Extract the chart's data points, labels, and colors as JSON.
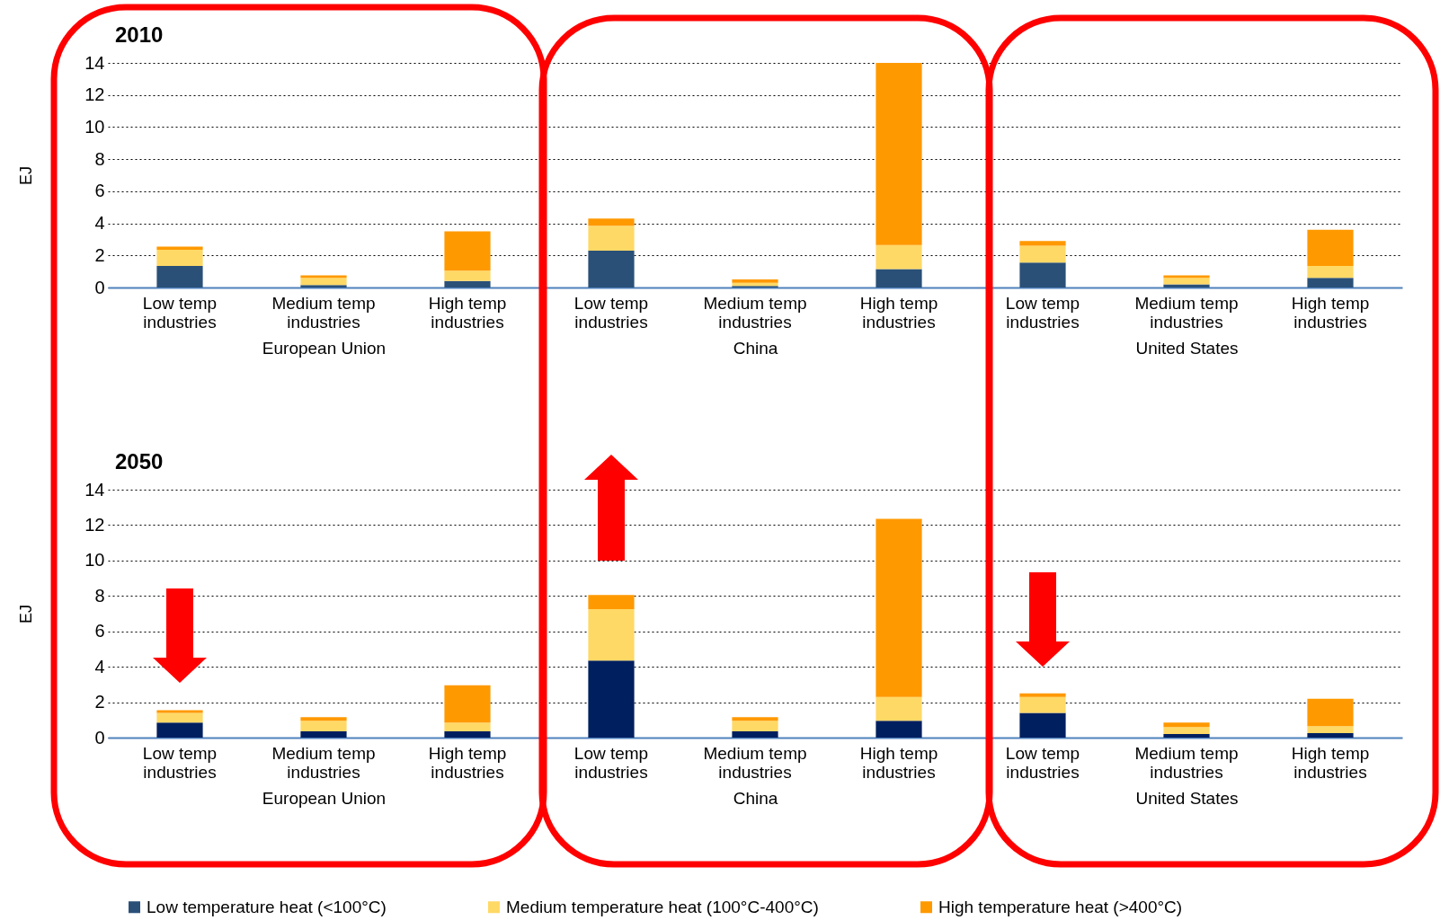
{
  "chart_data": [
    {
      "type": "bar",
      "stacked": true,
      "title": "2010",
      "ylabel": "EJ",
      "xlabel": "European Union",
      "categories": [
        "Low temp industries",
        "Medium temp industries",
        "High temp industries"
      ],
      "ylim": [
        0,
        14
      ],
      "yticks": [
        0,
        2,
        4,
        6,
        8,
        10,
        12,
        14
      ],
      "grid": "y",
      "legend": "bottom",
      "series": [
        {
          "name": "Low temperature heat (<100°C)",
          "color": "#2a5078",
          "values": [
            1.35,
            0.15,
            0.4
          ]
        },
        {
          "name": "Medium temperature heat (100°C-400°C)",
          "color": "#ffd966",
          "values": [
            1.0,
            0.45,
            0.65
          ]
        },
        {
          "name": "High temperature heat (>400°C)",
          "color": "#ff9900",
          "values": [
            0.2,
            0.15,
            2.45
          ]
        }
      ]
    },
    {
      "type": "bar",
      "stacked": true,
      "xlabel": "China",
      "categories": [
        "Low temp industries",
        "Medium temp industries",
        "High temp industries"
      ],
      "ylim": [
        0,
        14
      ],
      "yticks": [
        0,
        2,
        4,
        6,
        8,
        10,
        12,
        14
      ],
      "grid": "y",
      "tick_labels": "x",
      "series": [
        {
          "color": "#2a5078",
          "values": [
            2.3,
            0.1,
            1.15
          ]
        },
        {
          "color": "#ffd966",
          "values": [
            1.55,
            0.2,
            1.5
          ]
        },
        {
          "color": "#ff9900",
          "values": [
            0.45,
            0.2,
            11.35
          ]
        }
      ]
    },
    {
      "type": "bar",
      "stacked": true,
      "xlabel": "United States",
      "categories": [
        "Low temp industries",
        "Medium temp industries",
        "High temp industries"
      ],
      "ylim": [
        0,
        14
      ],
      "yticks": [
        0,
        2,
        4,
        6,
        8,
        10,
        12,
        14
      ],
      "grid": "y",
      "tick_labels": "x",
      "series": [
        {
          "color": "#2a5078",
          "values": [
            1.55,
            0.2,
            0.6
          ]
        },
        {
          "color": "#ffd966",
          "values": [
            1.05,
            0.4,
            0.75
          ]
        },
        {
          "color": "#ff9900",
          "values": [
            0.3,
            0.15,
            2.25
          ]
        }
      ]
    },
    {
      "type": "bar",
      "stacked": true,
      "title": "2050",
      "ylabel": "EJ",
      "xlabel": "European Union",
      "categories": [
        "Low temp industries",
        "Medium temp industries",
        "High temp industries"
      ],
      "ylim": [
        0,
        14
      ],
      "yticks": [
        0,
        2,
        4,
        6,
        8,
        10,
        12,
        14
      ],
      "grid": "y",
      "series": [
        {
          "color": "#001f5f",
          "values": [
            0.85,
            0.35,
            0.35
          ]
        },
        {
          "color": "#ffd966",
          "values": [
            0.55,
            0.6,
            0.5
          ]
        },
        {
          "color": "#ff9900",
          "values": [
            0.15,
            0.2,
            2.1
          ]
        }
      ]
    },
    {
      "type": "bar",
      "stacked": true,
      "xlabel": "China",
      "categories": [
        "Low temp industries",
        "Medium temp industries",
        "High temp industries"
      ],
      "ylim": [
        0,
        14
      ],
      "yticks": [
        0,
        2,
        4,
        6,
        8,
        10,
        12,
        14
      ],
      "grid": "y",
      "tick_labels": "x",
      "series": [
        {
          "color": "#001f5f",
          "values": [
            4.35,
            0.35,
            0.95
          ]
        },
        {
          "color": "#ffd966",
          "values": [
            2.9,
            0.6,
            1.35
          ]
        },
        {
          "color": "#ff9900",
          "values": [
            0.8,
            0.2,
            10.05
          ]
        }
      ]
    },
    {
      "type": "bar",
      "stacked": true,
      "xlabel": "United States",
      "categories": [
        "Low temp industries",
        "Medium temp industries",
        "High temp industries"
      ],
      "ylim": [
        0,
        14
      ],
      "yticks": [
        0,
        2,
        4,
        6,
        8,
        10,
        12,
        14
      ],
      "grid": "y",
      "tick_labels": "x",
      "series": [
        {
          "color": "#001f5f",
          "values": [
            1.4,
            0.2,
            0.25
          ]
        },
        {
          "color": "#ffd966",
          "values": [
            0.9,
            0.4,
            0.4
          ]
        },
        {
          "color": "#ff9900",
          "values": [
            0.2,
            0.25,
            1.55
          ]
        }
      ]
    }
  ]
}
